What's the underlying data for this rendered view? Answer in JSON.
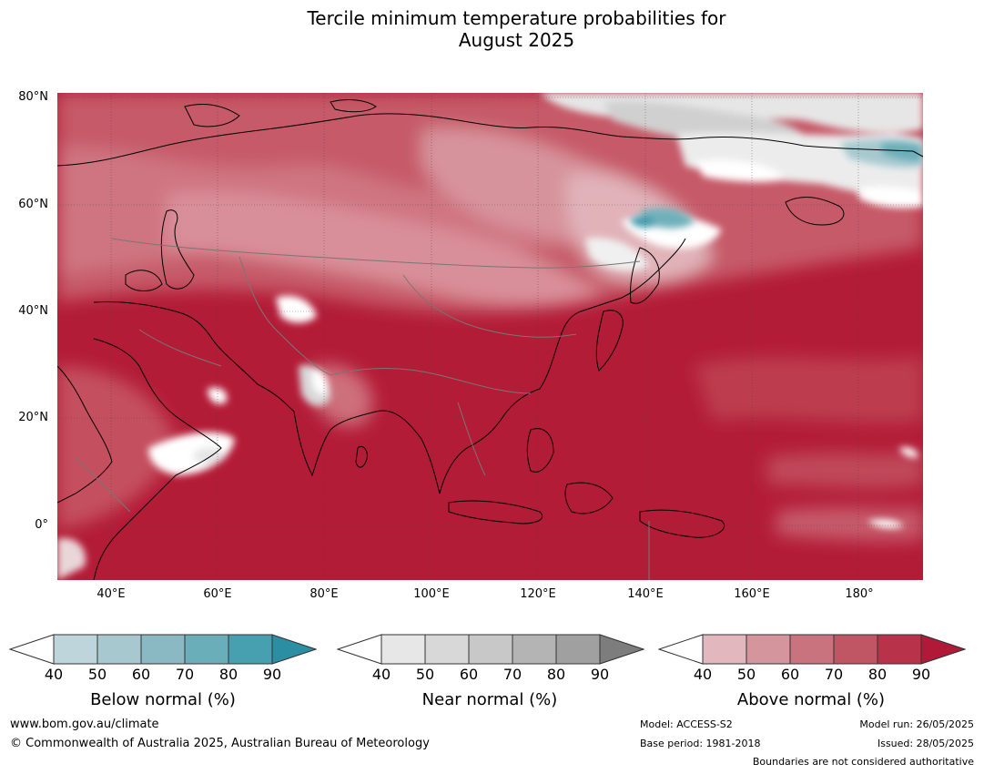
{
  "title": {
    "line1": "Tercile minimum temperature probabilities for",
    "line2": "August 2025"
  },
  "map": {
    "lat_labels": [
      "80°N",
      "60°N",
      "40°N",
      "20°N",
      "0°"
    ],
    "lon_labels": [
      "40°E",
      "60°E",
      "80°E",
      "100°E",
      "120°E",
      "140°E",
      "160°E",
      "180°"
    ],
    "extent": {
      "lon": [
        30,
        192
      ],
      "lat": [
        -10,
        81
      ]
    },
    "dominant_category": "Above normal"
  },
  "colorbars": [
    {
      "title": "Below normal (%)",
      "ticks": [
        "40",
        "50",
        "60",
        "70",
        "80",
        "90"
      ],
      "colors": [
        "#ffffff",
        "#bfd5dc",
        "#a8c8cf",
        "#8ab8c3",
        "#6aaeb9",
        "#46a0b0",
        "#2c8ea3"
      ]
    },
    {
      "title": "Near normal (%)",
      "ticks": [
        "40",
        "50",
        "60",
        "70",
        "80",
        "90"
      ],
      "colors": [
        "#ffffff",
        "#e7e7e7",
        "#d8d8d8",
        "#c8c8c8",
        "#b4b4b4",
        "#a0a0a0",
        "#7d7d7d"
      ]
    },
    {
      "title": "Above normal (%)",
      "ticks": [
        "40",
        "50",
        "60",
        "70",
        "80",
        "90"
      ],
      "colors": [
        "#ffffff",
        "#e2b7bd",
        "#d5959d",
        "#c9737f",
        "#c05663",
        "#b8334a",
        "#b01a38"
      ]
    }
  ],
  "footer": {
    "website": "www.bom.gov.au/climate",
    "copyright": "© Commonwealth of Australia 2025, Australian Bureau of Meteorology",
    "model": "Model: ACCESS-S2",
    "base_period": "Base period: 1981-2018",
    "model_run": "Model run: 26/05/2025",
    "issued": "Issued: 28/05/2025",
    "disclaimer": "Boundaries are not considered authoritative"
  }
}
